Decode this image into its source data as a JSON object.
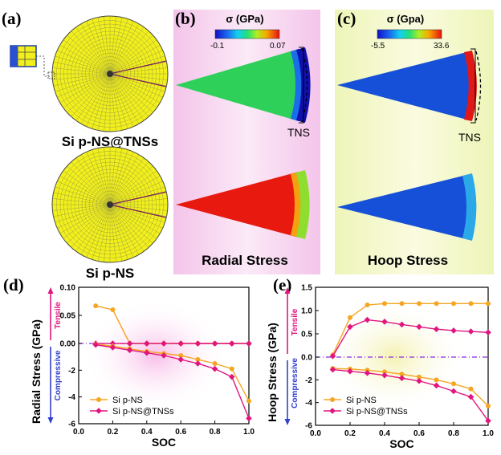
{
  "panel_a": {
    "label": "(a)",
    "top_caption": "Si p-NS@TNSs",
    "bottom_caption": "Si p-NS"
  },
  "panel_b": {
    "label": "(b)",
    "colorbar_title": "σ (GPa)",
    "colorbar_min": "-0.1",
    "colorbar_max": "0.07",
    "tns_label": "TNS",
    "caption": "Radial Stress"
  },
  "panel_c": {
    "label": "(c)",
    "colorbar_title": "σ (Gpa)",
    "colorbar_min": "-5.5",
    "colorbar_max": "33.6",
    "tns_label": "TNS",
    "caption": "Hoop Stress"
  },
  "colors": {
    "orange": "#f5a623",
    "magenta": "#e0157f",
    "dashed_zero": "#8a2be2",
    "tensile": "#e0157f",
    "compressive": "#3040d0",
    "mesh_yellow": "#f2f01c",
    "panel_b_bg": "#f6d2ee",
    "panel_c_bg": "#f5f8c8"
  },
  "chart_data": [
    {
      "type": "line",
      "panel_label": "(d)",
      "xlabel": "SOC",
      "ylabel": "Radial Stress (GPa)",
      "side_labels": {
        "tensile": "Tensile",
        "compressive": "Compressive"
      },
      "xlim": [
        0.0,
        1.0
      ],
      "xticks": [
        "0.0",
        "0.2",
        "0.4",
        "0.6",
        "0.8",
        "1.0"
      ],
      "yticks": [
        "0.10",
        "0.05",
        "0.00",
        "-2",
        "-4",
        "-6"
      ],
      "y_axis_note": "broken y-axis: 0.10 to 0.00 (upper segment), 0 to -6 (lower segment)",
      "zero_line": true,
      "series": [
        {
          "name": "Si p-NS",
          "color": "orange",
          "marker": "circle",
          "x": [
            0.1,
            0.2,
            0.3,
            0.4,
            0.5,
            0.6,
            0.7,
            0.8,
            0.9,
            1.0
          ],
          "y": [
            0.067,
            0.06,
            0.0,
            0.0,
            0.0,
            0.0,
            0.0,
            0.0,
            0.0,
            0.0
          ]
        },
        {
          "name": "Si p-NS@TNSs",
          "color": "magenta",
          "marker": "diamond",
          "x": [
            0.1,
            0.2,
            0.3,
            0.4,
            0.5,
            0.6,
            0.7,
            0.8,
            0.9,
            1.0
          ],
          "y": [
            -0.002,
            -0.003,
            -0.004,
            -0.005,
            -0.006,
            -0.006,
            -0.007,
            -0.007,
            -0.008,
            -0.008
          ]
        },
        {
          "name": "",
          "color": "orange",
          "marker": "circle",
          "x": [
            0.1,
            0.2,
            0.3,
            0.4,
            0.5,
            0.6,
            0.7,
            0.8,
            0.9,
            1.0
          ],
          "y": [
            -0.05,
            -0.2,
            -0.4,
            -0.6,
            -0.75,
            -0.9,
            -1.2,
            -1.5,
            -1.9,
            -4.3
          ]
        },
        {
          "name": "",
          "color": "magenta",
          "marker": "diamond",
          "x": [
            0.1,
            0.2,
            0.3,
            0.4,
            0.5,
            0.6,
            0.7,
            0.8,
            0.9,
            1.0
          ],
          "y": [
            -0.1,
            -0.3,
            -0.5,
            -0.7,
            -0.9,
            -1.2,
            -1.5,
            -1.9,
            -2.5,
            -5.6
          ]
        }
      ],
      "legend": [
        "Si p-NS",
        "Si p-NS@TNSs"
      ],
      "legend_placement": "bottom-left"
    },
    {
      "type": "line",
      "panel_label": "(e)",
      "xlabel": "SOC",
      "ylabel": "Hoop Stress (GPa)",
      "side_labels": {
        "tensile": "Tensile",
        "compressive": "Compressive"
      },
      "xlim": [
        0.0,
        1.0
      ],
      "ylim": [
        -6.0,
        1.5
      ],
      "xticks": [
        "0.0",
        "0.2",
        "0.4",
        "0.6",
        "0.8",
        "1.0"
      ],
      "yticks": [
        "1.5",
        "1.0",
        "0.5",
        "0.0",
        "-2",
        "-4",
        "-6"
      ],
      "y_axis_note": "broken y-axis: 1.5 to 0.0 (upper segment), 0 to -6 (lower segment)",
      "zero_line": true,
      "series": [
        {
          "name": "Si p-NS",
          "color": "orange",
          "marker": "circle",
          "x": [
            0.1,
            0.2,
            0.3,
            0.4,
            0.5,
            0.6,
            0.7,
            0.8,
            0.9,
            1.0
          ],
          "y": [
            0.05,
            0.85,
            1.12,
            1.15,
            1.15,
            1.15,
            1.15,
            1.15,
            1.15,
            1.15
          ]
        },
        {
          "name": "Si p-NS@TNSs",
          "color": "magenta",
          "marker": "diamond",
          "x": [
            0.1,
            0.2,
            0.3,
            0.4,
            0.5,
            0.6,
            0.7,
            0.8,
            0.9,
            1.0
          ],
          "y": [
            0.02,
            0.65,
            0.8,
            0.76,
            0.7,
            0.65,
            0.6,
            0.57,
            0.55,
            0.53
          ]
        },
        {
          "name": "",
          "color": "orange",
          "marker": "circle",
          "x": [
            0.1,
            0.2,
            0.3,
            0.4,
            0.5,
            0.6,
            0.7,
            0.8,
            0.9,
            1.0
          ],
          "y": [
            -1.0,
            -1.05,
            -1.15,
            -1.3,
            -1.5,
            -1.75,
            -2.0,
            -2.35,
            -2.8,
            -4.3
          ]
        },
        {
          "name": "",
          "color": "magenta",
          "marker": "diamond",
          "x": [
            0.1,
            0.2,
            0.3,
            0.4,
            0.5,
            0.6,
            0.7,
            0.8,
            0.9,
            1.0
          ],
          "y": [
            -1.1,
            -1.25,
            -1.4,
            -1.6,
            -1.85,
            -2.1,
            -2.5,
            -3.0,
            -3.5,
            -5.6
          ]
        }
      ],
      "legend": [
        "Si p-NS",
        "Si p-NS@TNSs"
      ],
      "legend_placement": "bottom-left"
    }
  ]
}
